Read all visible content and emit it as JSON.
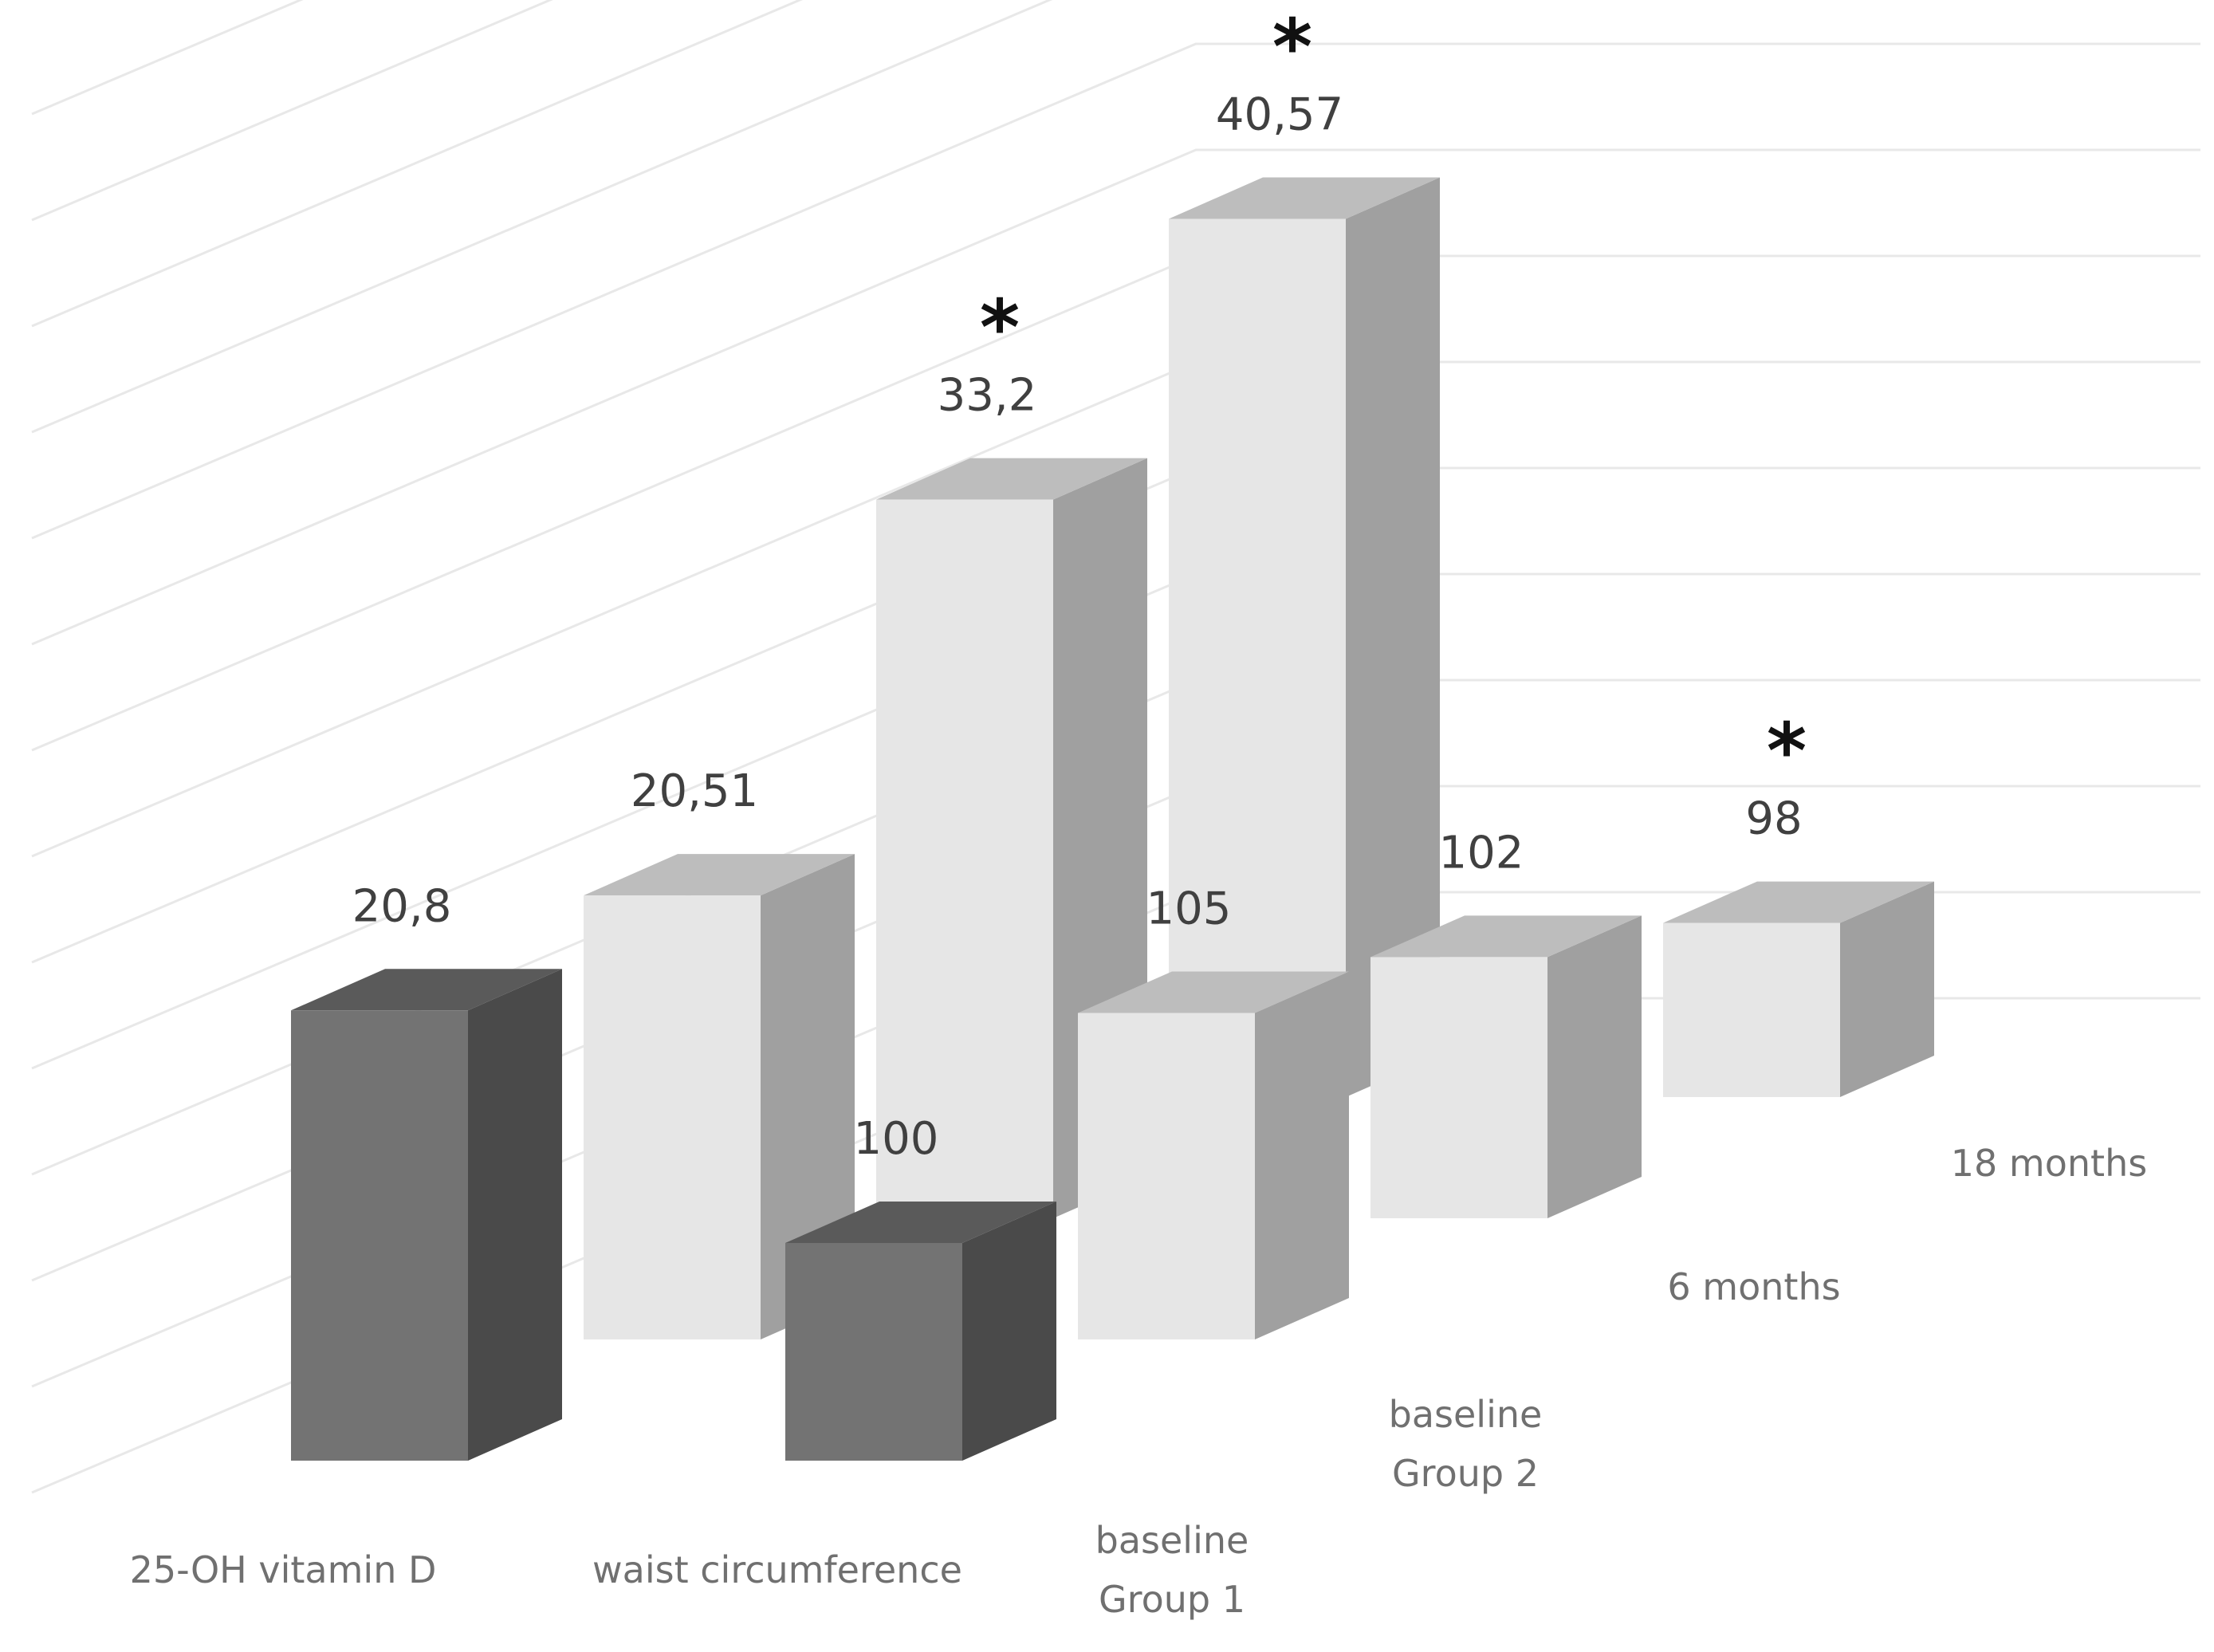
{
  "chart_data": {
    "type": "bar",
    "series_labels": [
      "baseline\nGroup 1",
      "baseline\nGroup 2",
      "6 months",
      "18 months"
    ],
    "categories": [
      "25-OH vitamin D",
      "waist circumference"
    ],
    "values": [
      [
        20.8,
        100
      ],
      [
        20.51,
        105
      ],
      [
        33.2,
        102
      ],
      [
        40.57,
        98
      ]
    ],
    "data_labels": [
      [
        "20,8",
        "100"
      ],
      [
        "20,51",
        "105"
      ],
      [
        "33,2",
        "102"
      ],
      [
        "40,57",
        "98"
      ]
    ],
    "significance": [
      [
        false,
        false
      ],
      [
        false,
        false
      ],
      [
        true,
        false
      ],
      [
        true,
        true
      ]
    ],
    "significance_marker": "*",
    "colors": {
      "dark": {
        "front": "#737373",
        "side": "#4a4a4a",
        "top": "#5a5a5a"
      },
      "light": {
        "front": "#e6e6e6",
        "side": "#a0a0a0",
        "top": "#bdbdbd"
      },
      "gridlines": "#e8e8e8"
    },
    "grid": true,
    "legend": "none"
  }
}
